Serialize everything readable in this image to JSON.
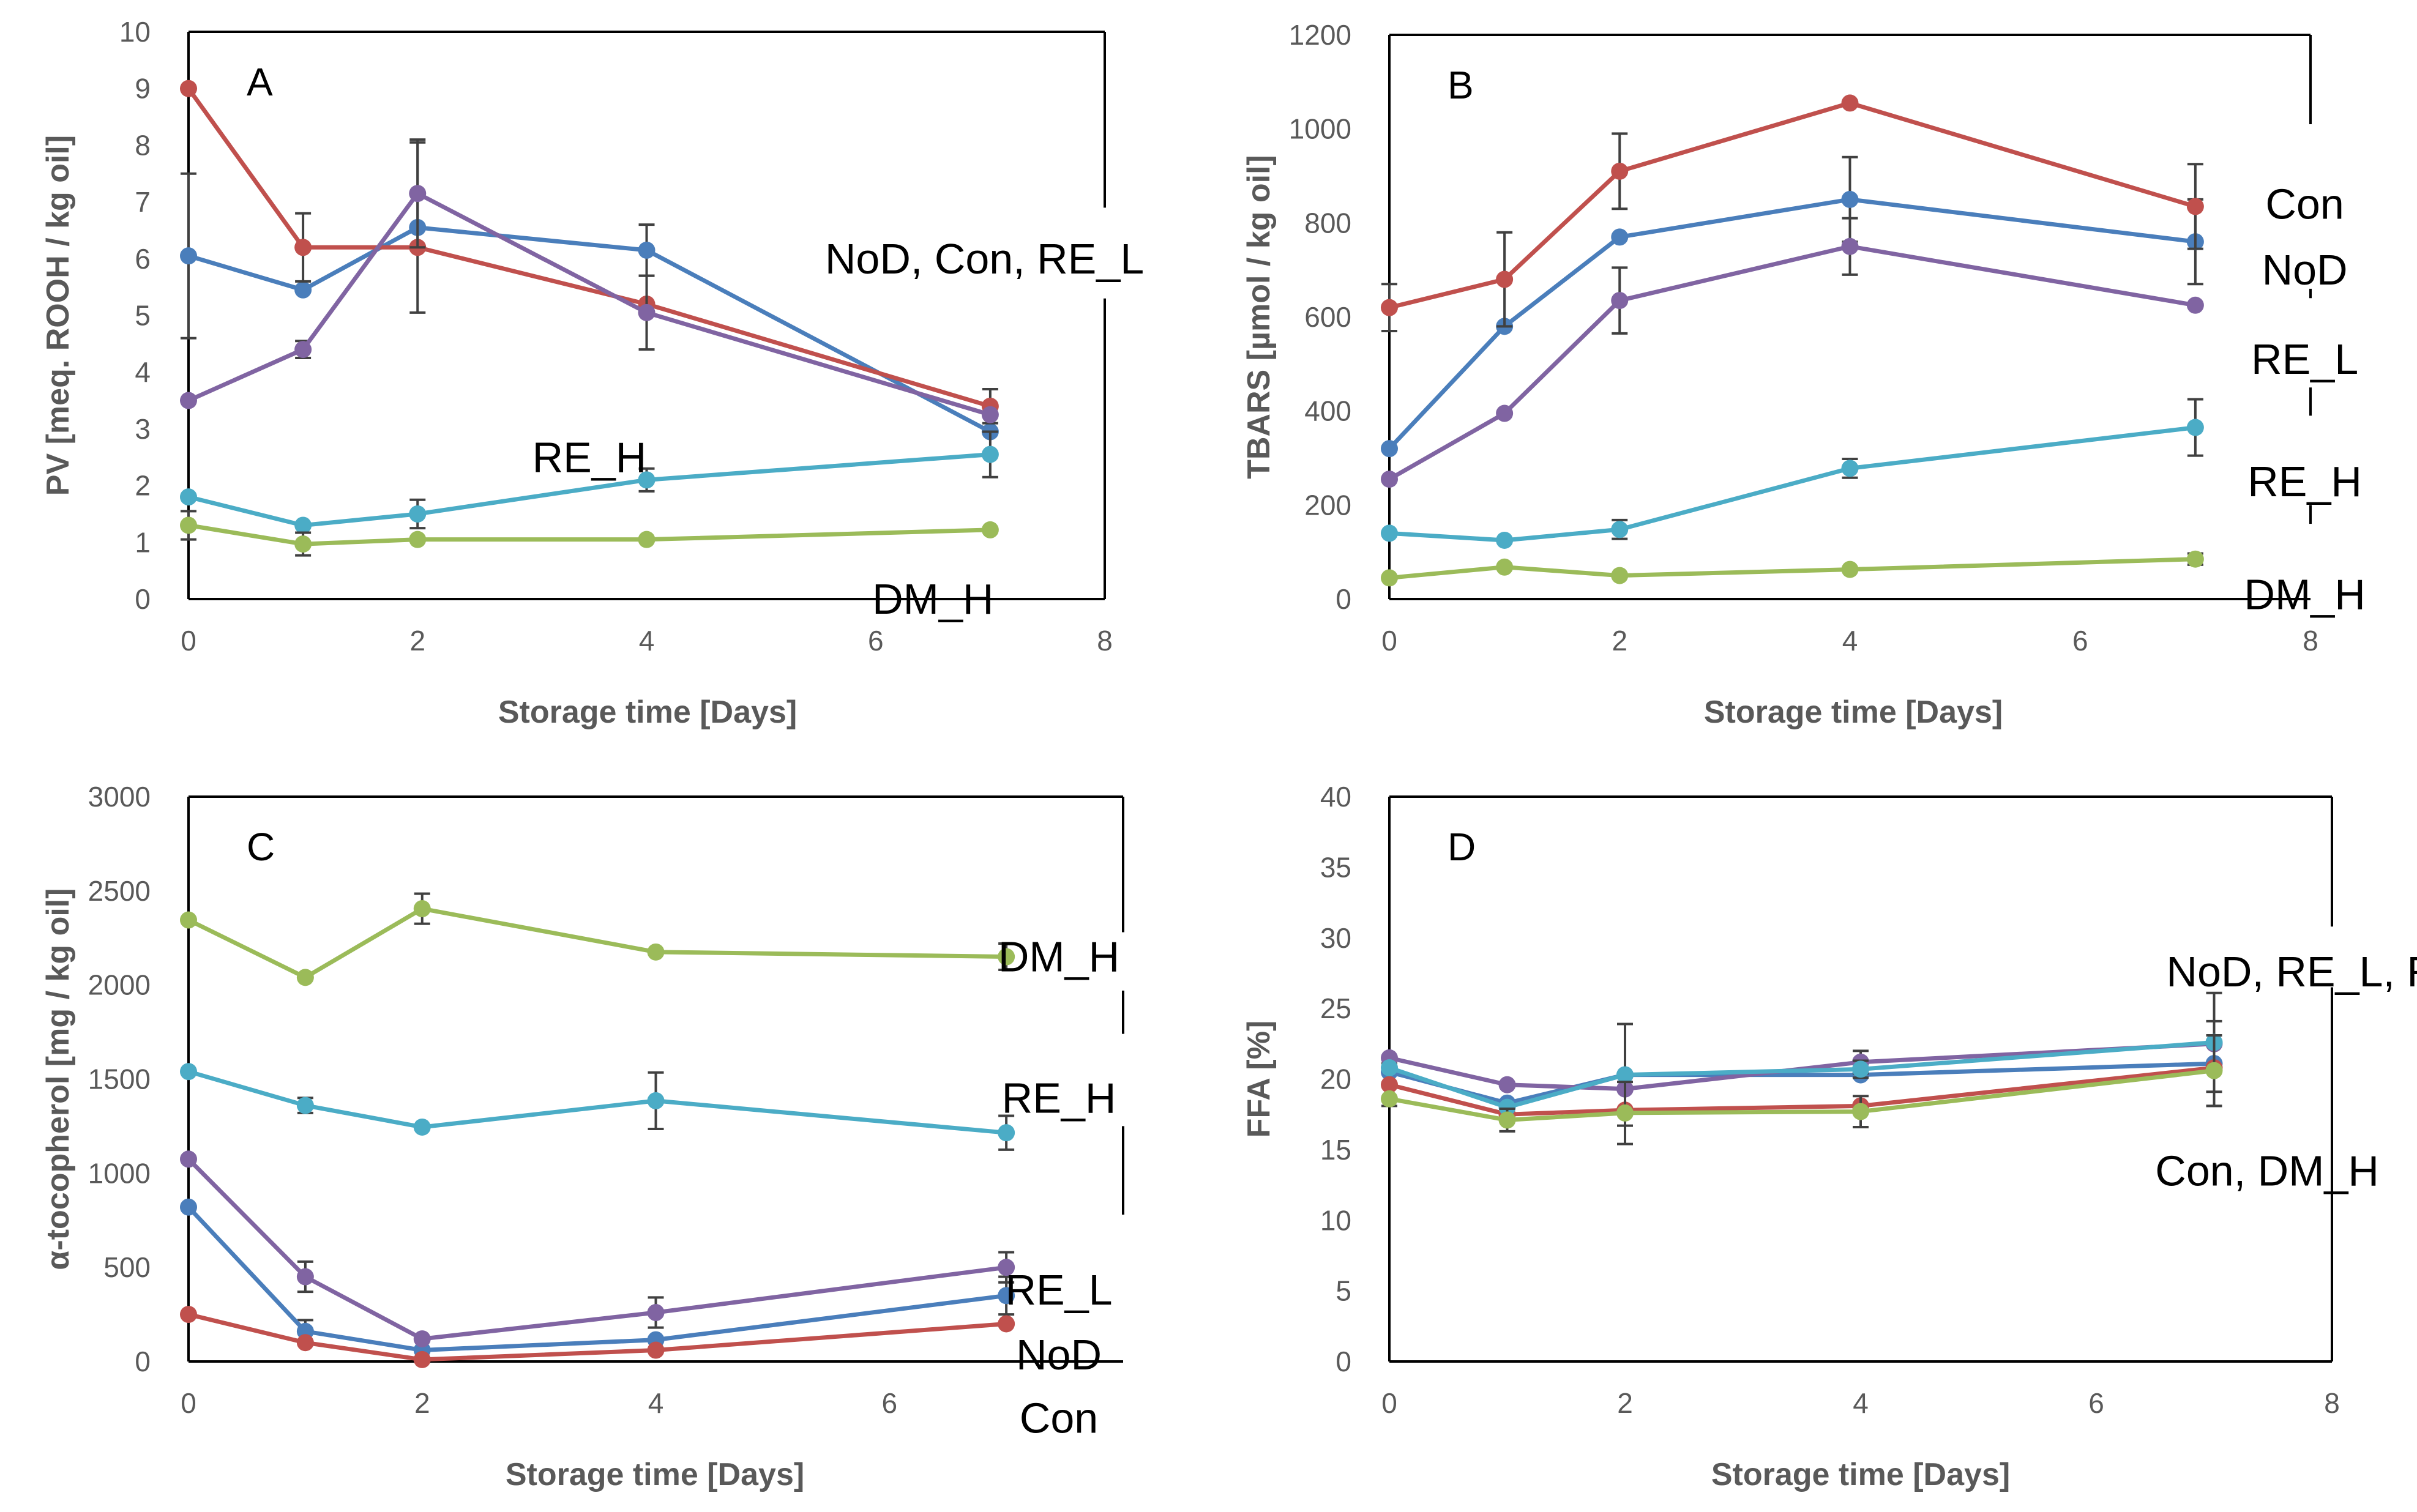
{
  "figure": {
    "series_names": [
      "NoD",
      "Con",
      "RE_L",
      "RE_H",
      "DM_H"
    ],
    "colors": {
      "NoD": "#4a7ebb",
      "Con": "#c0504d",
      "RE_L": "#8064a2",
      "RE_H": "#4bacc6",
      "DM_H": "#9bbb59"
    }
  },
  "chart_data": [
    {
      "panel": "A",
      "type": "line",
      "xlabel": "Storage time [Days]",
      "ylabel": "PV [meq. ROOH / kg oil]",
      "xlim": [
        0,
        8
      ],
      "ylim": [
        0,
        10
      ],
      "xticks": [
        0,
        2,
        4,
        6,
        8
      ],
      "yticks": [
        0,
        1,
        2,
        3,
        4,
        5,
        6,
        7,
        8,
        9,
        10
      ],
      "annotations": [
        {
          "text": "NoD, Con, RE_L",
          "x": 6.95,
          "y": 6.0
        },
        {
          "text": "RE_H",
          "x": 3.5,
          "y": 2.5
        },
        {
          "text": "DM_H",
          "x": 6.5,
          "y": 0.0
        }
      ],
      "brackets": [
        {
          "x": 8,
          "y1": 10,
          "y2": 6.9
        },
        {
          "x": 8,
          "y1": 5.3,
          "y2": 0
        }
      ],
      "series": [
        {
          "name": "NoD",
          "x": [
            0,
            1,
            2,
            4,
            7
          ],
          "y": [
            6.05,
            5.45,
            6.55,
            6.15,
            2.95
          ],
          "err": [
            1.45,
            0,
            1.5,
            0.45,
            0
          ]
        },
        {
          "name": "Con",
          "x": [
            0,
            1,
            2,
            4,
            7
          ],
          "y": [
            9.0,
            6.2,
            6.2,
            5.2,
            3.4
          ],
          "err": [
            0,
            0.6,
            0,
            0,
            0.3
          ]
        },
        {
          "name": "RE_L",
          "x": [
            0,
            1,
            2,
            4,
            7
          ],
          "y": [
            3.5,
            4.4,
            7.15,
            5.05,
            3.25
          ],
          "err": [
            0,
            0.15,
            0.95,
            0.65,
            0
          ]
        },
        {
          "name": "RE_H",
          "x": [
            0,
            1,
            2,
            4,
            7
          ],
          "y": [
            1.8,
            1.3,
            1.5,
            2.1,
            2.55
          ],
          "err": [
            0,
            0,
            0.25,
            0.2,
            0.4
          ]
        },
        {
          "name": "DM_H",
          "x": [
            0,
            1,
            2,
            4,
            7
          ],
          "y": [
            1.3,
            0.97,
            1.05,
            1.05,
            1.22
          ],
          "err": [
            0.25,
            0.2,
            0,
            0,
            0
          ]
        }
      ]
    },
    {
      "panel": "B",
      "type": "line",
      "xlabel": "Storage time [Days]",
      "ylabel": "TBARS [µmol / kg oil]",
      "xlim": [
        0,
        8
      ],
      "ylim": [
        0,
        1200
      ],
      "xticks": [
        0,
        2,
        4,
        6,
        8
      ],
      "yticks": [
        0,
        200,
        400,
        600,
        800,
        1000,
        1200
      ],
      "annotations": [
        {
          "text": "Con",
          "x": 7.95,
          "y": 840
        },
        {
          "text": "NoD",
          "x": 7.95,
          "y": 700
        },
        {
          "text": "RE_L",
          "x": 7.95,
          "y": 510
        },
        {
          "text": "RE_H",
          "x": 7.95,
          "y": 250
        },
        {
          "text": "DM_H",
          "x": 7.95,
          "y": 10
        }
      ],
      "brackets": [
        {
          "x": 8,
          "y1": 1200,
          "y2": 1010
        },
        {
          "x": 8,
          "y1": 660,
          "y2": 640
        },
        {
          "x": 8,
          "y1": 450,
          "y2": 390
        },
        {
          "x": 8,
          "y1": 200,
          "y2": 160
        }
      ],
      "series": [
        {
          "name": "NoD",
          "x": [
            0,
            1,
            2,
            4,
            7
          ],
          "y": [
            320,
            580,
            770,
            850,
            760
          ],
          "err": [
            0,
            0,
            0,
            90,
            90
          ]
        },
        {
          "name": "Con",
          "x": [
            0,
            1,
            2,
            4,
            7
          ],
          "y": [
            620,
            680,
            910,
            1055,
            835
          ],
          "err": [
            50,
            100,
            80,
            0,
            90
          ]
        },
        {
          "name": "RE_L",
          "x": [
            0,
            1,
            2,
            4,
            7
          ],
          "y": [
            255,
            395,
            635,
            750,
            625
          ],
          "err": [
            0,
            0,
            70,
            60,
            0
          ]
        },
        {
          "name": "RE_H",
          "x": [
            0,
            1,
            2,
            4,
            7
          ],
          "y": [
            140,
            125,
            148,
            278,
            365
          ],
          "err": [
            0,
            0,
            20,
            20,
            60
          ]
        },
        {
          "name": "DM_H",
          "x": [
            0,
            1,
            2,
            4,
            7
          ],
          "y": [
            45,
            68,
            50,
            63,
            85
          ],
          "err": [
            0,
            0,
            0,
            0,
            12
          ]
        }
      ]
    },
    {
      "panel": "C",
      "type": "line",
      "xlabel": "Storage time [Days]",
      "ylabel": "α-tocopherol [mg / kg oil]",
      "xlim": [
        0,
        8
      ],
      "ylim": [
        0,
        3000
      ],
      "xticks": [
        0,
        2,
        4,
        6
      ],
      "yticks": [
        0,
        500,
        1000,
        1500,
        2000,
        2500,
        3000
      ],
      "annotations": [
        {
          "text": "DM_H",
          "x": 7.45,
          "y": 2150
        },
        {
          "text": "RE_H",
          "x": 7.45,
          "y": 1400
        },
        {
          "text": "RE_L",
          "x": 7.45,
          "y": 380
        },
        {
          "text": "NoD",
          "x": 7.45,
          "y": 35
        },
        {
          "text": "Con",
          "x": 7.45,
          "y": -300
        }
      ],
      "brackets": [
        {
          "x": 8,
          "y1": 3000,
          "y2": 2280
        },
        {
          "x": 8,
          "y1": 1970,
          "y2": 1740
        },
        {
          "x": 8,
          "y1": 1250,
          "y2": 780
        }
      ],
      "series": [
        {
          "name": "NoD",
          "x": [
            0,
            1,
            2,
            4,
            7
          ],
          "y": [
            820,
            160,
            60,
            115,
            350
          ],
          "err": [
            0,
            60,
            0,
            0,
            100
          ]
        },
        {
          "name": "Con",
          "x": [
            0,
            1,
            2,
            4,
            7
          ],
          "y": [
            250,
            100,
            10,
            60,
            200
          ],
          "err": [
            0,
            0,
            0,
            0,
            0
          ]
        },
        {
          "name": "RE_L",
          "x": [
            0,
            1,
            2,
            4,
            7
          ],
          "y": [
            1075,
            450,
            120,
            260,
            500
          ],
          "err": [
            0,
            80,
            0,
            80,
            80
          ]
        },
        {
          "name": "RE_H",
          "x": [
            0,
            1,
            2,
            4,
            7
          ],
          "y": [
            1540,
            1360,
            1245,
            1385,
            1215
          ],
          "err": [
            0,
            40,
            0,
            150,
            90
          ]
        },
        {
          "name": "DM_H",
          "x": [
            0,
            1,
            2,
            4,
            7
          ],
          "y": [
            2345,
            2040,
            2405,
            2175,
            2150
          ],
          "err": [
            0,
            0,
            80,
            0,
            70
          ]
        }
      ]
    },
    {
      "panel": "D",
      "type": "line",
      "xlabel": "Storage time [Days]",
      "ylabel": "FFA [%]",
      "xlim": [
        0,
        8
      ],
      "ylim": [
        0,
        40
      ],
      "xticks": [
        0,
        2,
        4,
        6,
        8
      ],
      "yticks": [
        0,
        5,
        10,
        15,
        20,
        25,
        30,
        35,
        40
      ],
      "annotations": [
        {
          "text": "NoD, RE_L, RE_H",
          "x": 8.1,
          "y": 27.6
        },
        {
          "text": "Con, DM_H",
          "x": 7.45,
          "y": 13.5
        }
      ],
      "brackets": [
        {
          "x": 8,
          "y1": 40,
          "y2": 30.8
        },
        {
          "x": 8,
          "y1": 26.5,
          "y2": 0
        }
      ],
      "series": [
        {
          "name": "NoD",
          "x": [
            0,
            1,
            2,
            4,
            7
          ],
          "y": [
            20.5,
            18.3,
            20.3,
            20.3,
            21.1
          ],
          "err": [
            0,
            0,
            0,
            0,
            3
          ]
        },
        {
          "name": "Con",
          "x": [
            0,
            1,
            2,
            4,
            7
          ],
          "y": [
            19.6,
            17.5,
            17.8,
            18.1,
            20.8
          ],
          "err": [
            1.5,
            0,
            0,
            0,
            0
          ]
        },
        {
          "name": "RE_L",
          "x": [
            0,
            1,
            2,
            4,
            7
          ],
          "y": [
            21.5,
            19.6,
            19.3,
            21.2,
            22.5
          ],
          "err": [
            0,
            0,
            0,
            0.8,
            0
          ]
        },
        {
          "name": "RE_H",
          "x": [
            0,
            1,
            2,
            4,
            7
          ],
          "y": [
            20.8,
            18.0,
            20.3,
            20.7,
            22.6
          ],
          "err": [
            0,
            0,
            3.6,
            0.6,
            3.5
          ]
        },
        {
          "name": "DM_H",
          "x": [
            0,
            1,
            2,
            4,
            7
          ],
          "y": [
            18.6,
            17.1,
            17.6,
            17.7,
            20.6
          ],
          "err": [
            0,
            0.8,
            2.2,
            1.1,
            2.5
          ]
        }
      ]
    }
  ]
}
